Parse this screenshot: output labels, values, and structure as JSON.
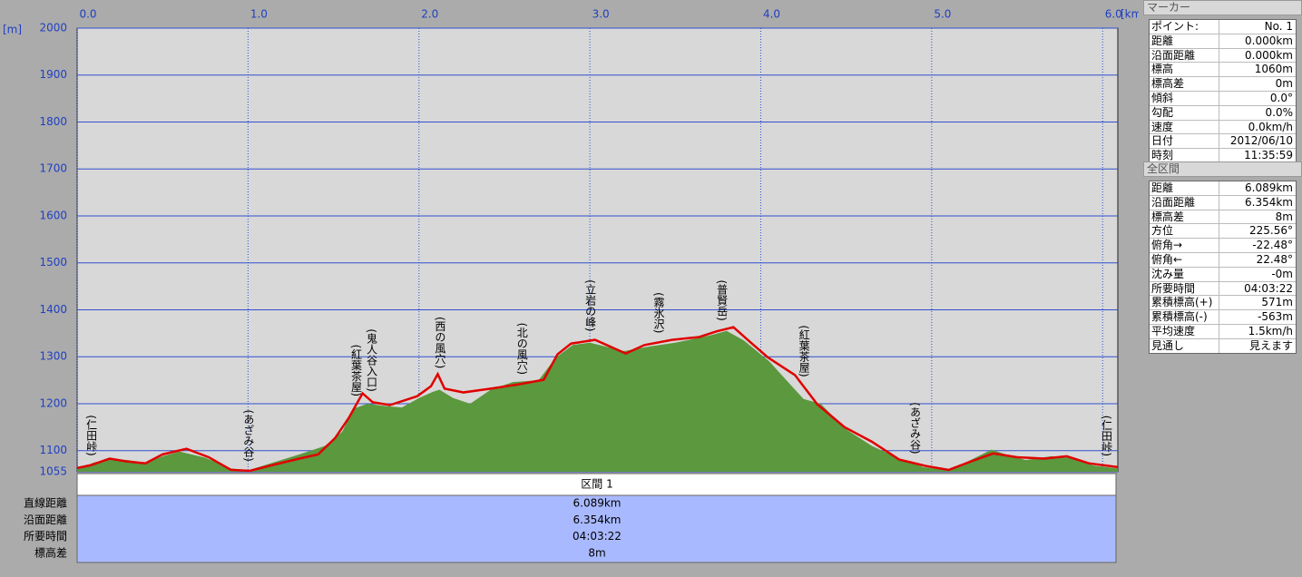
{
  "chart_data": {
    "type": "area-line",
    "x_unit": "[km]",
    "y_unit": "[m]",
    "xlim": [
      0,
      6.089
    ],
    "ylim": [
      1055,
      2000
    ],
    "xticks": [
      {
        "value": 0,
        "label": "0.0"
      },
      {
        "value": 1,
        "label": "1.0"
      },
      {
        "value": 2,
        "label": "2.0"
      },
      {
        "value": 3,
        "label": "3.0"
      },
      {
        "value": 4,
        "label": "4.0"
      },
      {
        "value": 5,
        "label": "5.0"
      },
      {
        "value": 6,
        "label": "6.0"
      }
    ],
    "yticks": [
      1055,
      1100,
      1200,
      1300,
      1400,
      1500,
      1600,
      1700,
      1800,
      1900,
      2000
    ],
    "grid": true,
    "series": [
      {
        "kind": "area",
        "color": "#5b983e",
        "x": [
          0,
          0.1,
          0.2,
          0.3,
          0.4,
          0.5,
          0.6,
          0.75,
          0.9,
          1.0,
          1.15,
          1.3,
          1.45,
          1.55,
          1.62,
          1.7,
          1.8,
          1.9,
          2.0,
          2.08,
          2.12,
          2.2,
          2.3,
          2.42,
          2.55,
          2.7,
          2.8,
          2.9,
          3.0,
          3.2,
          3.35,
          3.5,
          3.7,
          3.8,
          3.9,
          4.05,
          4.15,
          4.25,
          4.35,
          4.5,
          4.65,
          4.8,
          4.95,
          5.1,
          5.2,
          5.35,
          5.45,
          5.55,
          5.7,
          5.8,
          5.95,
          6.089
        ],
        "values": [
          1060,
          1075,
          1082,
          1080,
          1073,
          1088,
          1098,
          1085,
          1062,
          1058,
          1075,
          1092,
          1110,
          1140,
          1190,
          1200,
          1195,
          1192,
          1212,
          1225,
          1230,
          1212,
          1200,
          1230,
          1246,
          1250,
          1298,
          1325,
          1330,
          1312,
          1322,
          1330,
          1345,
          1355,
          1335,
          1290,
          1250,
          1210,
          1200,
          1145,
          1110,
          1085,
          1065,
          1058,
          1075,
          1102,
          1090,
          1080,
          1088,
          1085,
          1068,
          1062
        ]
      },
      {
        "kind": "line",
        "color": "#e00000",
        "x": [
          0,
          0.08,
          0.19,
          0.29,
          0.4,
          0.5,
          0.64,
          0.77,
          0.9,
          1.01,
          1.14,
          1.3,
          1.41,
          1.51,
          1.59,
          1.67,
          1.73,
          1.83,
          1.99,
          2.07,
          2.11,
          2.15,
          2.26,
          2.42,
          2.58,
          2.73,
          2.81,
          2.89,
          3.03,
          3.21,
          3.32,
          3.48,
          3.64,
          3.74,
          3.84,
          3.93,
          4.04,
          4.2,
          4.33,
          4.49,
          4.65,
          4.81,
          4.97,
          5.1,
          5.23,
          5.36,
          5.5,
          5.66,
          5.79,
          5.92,
          6.089
        ],
        "values": [
          1063,
          1069,
          1083,
          1077,
          1073,
          1092,
          1104,
          1086,
          1059,
          1057,
          1069,
          1083,
          1092,
          1127,
          1170,
          1222,
          1203,
          1197,
          1216,
          1237,
          1263,
          1232,
          1224,
          1232,
          1241,
          1251,
          1305,
          1328,
          1336,
          1307,
          1325,
          1336,
          1342,
          1354,
          1363,
          1334,
          1299,
          1261,
          1199,
          1150,
          1119,
          1081,
          1067,
          1059,
          1077,
          1094,
          1086,
          1083,
          1088,
          1073,
          1065
        ]
      }
    ],
    "annotations": [
      {
        "text": "(仁田峠)",
        "x": 0.08
      },
      {
        "text": "(あざみ谷)",
        "x": 1.0
      },
      {
        "text": "(紅葉茶屋)",
        "x": 1.63
      },
      {
        "text": "(鬼人谷入口)",
        "x": 1.72
      },
      {
        "text": "(西の風穴)",
        "x": 2.12
      },
      {
        "text": "(北の風穴)",
        "x": 2.6
      },
      {
        "text": "(立岩の峰)",
        "x": 3.0
      },
      {
        "text": "(霧氷沢)",
        "x": 3.4
      },
      {
        "text": "(普賢岳)",
        "x": 3.77
      },
      {
        "text": "(紅葉茶屋)",
        "x": 4.25
      },
      {
        "text": "(あざみ谷)",
        "x": 4.9
      },
      {
        "text": "(仁田峠)",
        "x": 6.02
      }
    ]
  },
  "marker": {
    "title": "マーカー",
    "rows": [
      [
        "ポイント:",
        "No. 1"
      ],
      [
        "距離",
        "0.000km"
      ],
      [
        "沿面距離",
        "0.000km"
      ],
      [
        "標高",
        "1060m"
      ],
      [
        "標高差",
        "0m"
      ],
      [
        "傾斜",
        "0.0°"
      ],
      [
        "勾配",
        "0.0%"
      ],
      [
        "速度",
        "0.0km/h"
      ],
      [
        "日付",
        "2012/06/10"
      ],
      [
        "時刻",
        "11:35:59"
      ]
    ]
  },
  "summary": {
    "title": "全区間",
    "rows": [
      [
        "距離",
        "6.089km"
      ],
      [
        "沿面距離",
        "6.354km"
      ],
      [
        "標高差",
        "8m"
      ],
      [
        "方位",
        "225.56°"
      ],
      [
        "俯角→",
        "-22.48°"
      ],
      [
        "俯角←",
        "22.48°"
      ],
      [
        "沈み量",
        "-0m"
      ],
      [
        "所要時間",
        "04:03:22"
      ],
      [
        "累積標高(+)",
        "571m"
      ],
      [
        "累積標高(-)",
        "-563m"
      ],
      [
        "平均速度",
        "1.5km/h"
      ],
      [
        "見通し",
        "見えます"
      ]
    ]
  },
  "section": {
    "title": "区間 1",
    "rows": [
      [
        "直線距離",
        "6.089km"
      ],
      [
        "沿面距離",
        "6.354km"
      ],
      [
        "所要時間",
        "04:03:22"
      ],
      [
        "標高差",
        "8m"
      ]
    ]
  }
}
